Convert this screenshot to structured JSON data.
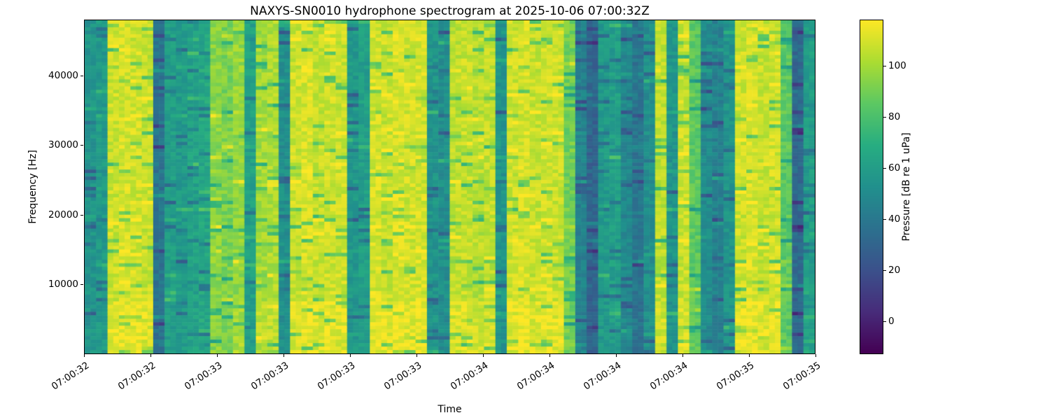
{
  "chart_data": {
    "type": "heatmap",
    "title": "NAXYS-SN0010 hydrophone spectrogram at 2025-10-06 07:00:32Z",
    "xlabel": "Time",
    "ylabel": "Frequency [Hz]",
    "x_tick_labels": [
      "07:00:32",
      "07:00:32",
      "07:00:33",
      "07:00:33",
      "07:00:33",
      "07:00:33",
      "07:00:34",
      "07:00:34",
      "07:00:34",
      "07:00:34",
      "07:00:35",
      "07:00:35"
    ],
    "y_ticks": [
      10000,
      20000,
      30000,
      40000
    ],
    "y_range_hz": [
      0,
      48000
    ],
    "grid": false,
    "colorbar": {
      "label": "Pressure [dB re 1 uPa]",
      "ticks": [
        0,
        20,
        40,
        60,
        80,
        100
      ],
      "range_db": [
        -13,
        118
      ],
      "colormap": "viridis",
      "colormap_stops": [
        "#440154",
        "#472c7a",
        "#3b518b",
        "#2c718e",
        "#21908d",
        "#27ad81",
        "#5cc863",
        "#aadc32",
        "#fde725"
      ]
    },
    "time_columns_db": [
      55,
      58,
      108,
      110,
      109,
      107,
      38,
      60,
      58,
      62,
      65,
      95,
      92,
      97,
      62,
      100,
      102,
      52,
      108,
      110,
      107,
      109,
      108,
      57,
      60,
      110,
      108,
      111,
      109,
      110,
      55,
      52,
      105,
      107,
      104,
      106,
      55,
      108,
      110,
      107,
      109,
      108,
      90,
      45,
      30,
      58,
      60,
      48,
      38,
      52,
      105,
      55,
      108,
      85,
      50,
      45,
      55,
      108,
      110,
      107,
      109,
      85,
      32,
      60
    ],
    "rows": 96,
    "noise_db": 7,
    "seed": 42
  }
}
